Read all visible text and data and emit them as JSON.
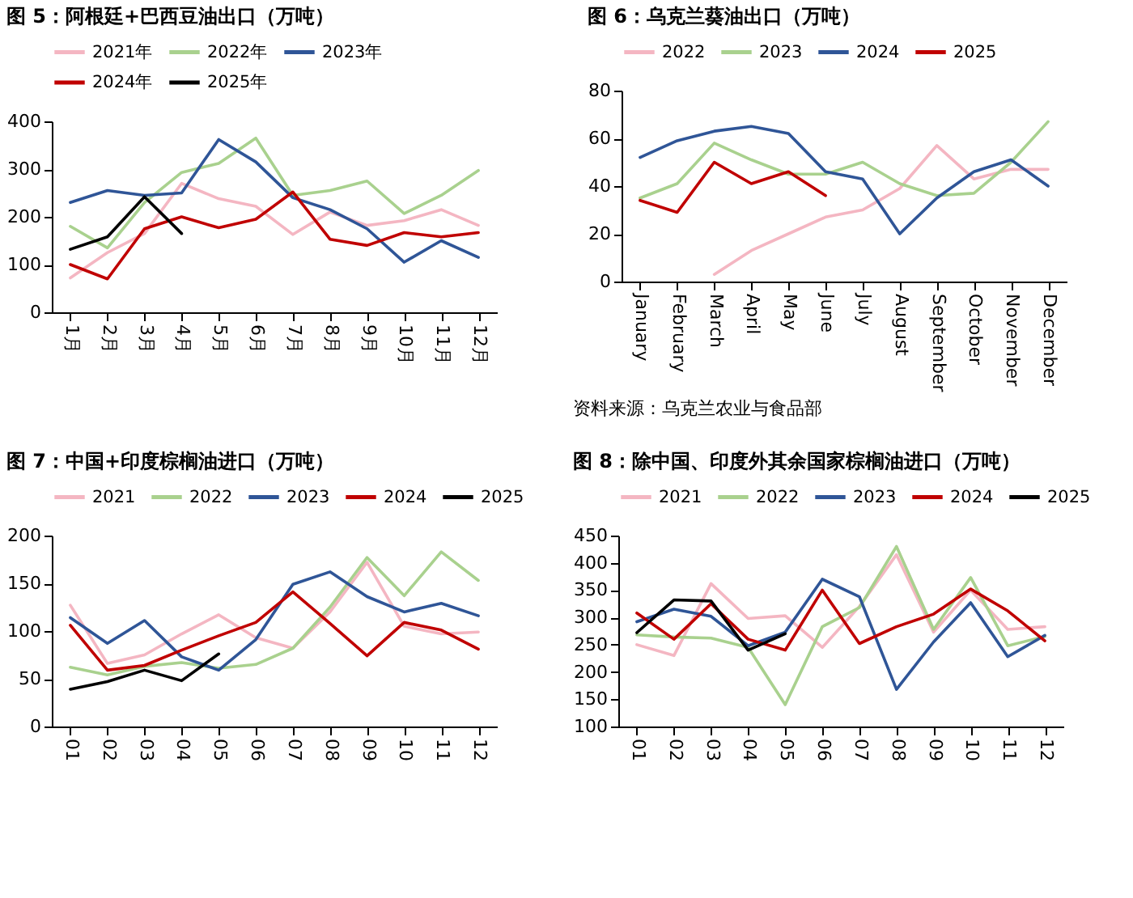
{
  "chart_data": [
    {
      "type": "line",
      "title": "图 5：阿根廷+巴西豆油出口（万吨）",
      "categories": [
        "1月",
        "2月",
        "3月",
        "4月",
        "5月",
        "6月",
        "7月",
        "8月",
        "9月",
        "10月",
        "11月",
        "12月"
      ],
      "ylim": [
        0,
        400
      ],
      "yticks": [
        0,
        100,
        200,
        300,
        400
      ],
      "grid": false,
      "legend": "top",
      "series": [
        {
          "name": "2021年",
          "color": "#f4b6c2",
          "values": [
            72,
            125,
            165,
            270,
            238,
            222,
            163,
            210,
            182,
            192,
            215,
            182
          ]
        },
        {
          "name": "2022年",
          "color": "#a9d18e",
          "values": [
            180,
            135,
            230,
            293,
            312,
            365,
            245,
            255,
            275,
            207,
            245,
            297
          ]
        },
        {
          "name": "2023年",
          "color": "#2f5597",
          "values": [
            230,
            255,
            245,
            250,
            362,
            315,
            240,
            215,
            175,
            105,
            150,
            115
          ]
        },
        {
          "name": "2024年",
          "color": "#c00000",
          "values": [
            100,
            70,
            175,
            200,
            177,
            195,
            252,
            153,
            140,
            167,
            158,
            167
          ]
        },
        {
          "name": "2025年",
          "color": "#000000",
          "values": [
            132,
            158,
            242,
            165,
            null,
            null,
            null,
            null,
            null,
            null,
            null,
            null
          ]
        }
      ]
    },
    {
      "type": "line",
      "title": "图 6：乌克兰葵油出口（万吨）",
      "categories": [
        "January",
        "February",
        "March",
        "April",
        "May",
        "June",
        "July",
        "August",
        "September",
        "October",
        "November",
        "December"
      ],
      "ylim": [
        0,
        80
      ],
      "yticks": [
        0,
        20,
        40,
        60,
        80
      ],
      "grid": false,
      "legend": "top",
      "annotations": [
        "资料来源：乌克兰农业与食品部"
      ],
      "series": [
        {
          "name": "2022",
          "color": "#f4b6c2",
          "values": [
            null,
            null,
            3,
            13,
            20,
            27,
            30,
            39,
            57,
            43,
            47,
            47
          ]
        },
        {
          "name": "2023",
          "color": "#a9d18e",
          "values": [
            35,
            41,
            58,
            51,
            45,
            45,
            50,
            41,
            36,
            37,
            50,
            67
          ]
        },
        {
          "name": "2024",
          "color": "#2f5597",
          "values": [
            52,
            59,
            63,
            65,
            62,
            46,
            43,
            20,
            35,
            46,
            51,
            40
          ]
        },
        {
          "name": "2025",
          "color": "#c00000",
          "values": [
            34,
            29,
            50,
            41,
            46,
            36,
            null,
            null,
            null,
            null,
            null,
            null
          ]
        }
      ]
    },
    {
      "type": "line",
      "title": "图 7：中国+印度棕榈油进口（万吨）",
      "categories": [
        "01",
        "02",
        "03",
        "04",
        "05",
        "06",
        "07",
        "08",
        "09",
        "10",
        "11",
        "12"
      ],
      "ylim": [
        0,
        200
      ],
      "yticks": [
        0,
        50,
        100,
        150,
        200
      ],
      "grid": false,
      "legend": "top",
      "series": [
        {
          "name": "2021",
          "color": "#f4b6c2",
          "values": [
            127,
            66,
            75,
            97,
            117,
            93,
            82,
            120,
            172,
            105,
            97,
            99
          ]
        },
        {
          "name": "2022",
          "color": "#a9d18e",
          "values": [
            62,
            54,
            63,
            67,
            61,
            65,
            82,
            125,
            177,
            137,
            183,
            153
          ]
        },
        {
          "name": "2023",
          "color": "#2f5597",
          "values": [
            114,
            87,
            111,
            73,
            59,
            91,
            149,
            162,
            136,
            120,
            129,
            116
          ]
        },
        {
          "name": "2024",
          "color": "#c00000",
          "values": [
            106,
            59,
            64,
            80,
            95,
            109,
            141,
            108,
            74,
            109,
            101,
            81
          ]
        },
        {
          "name": "2025",
          "color": "#000000",
          "values": [
            39,
            47,
            59,
            48,
            76,
            null,
            null,
            null,
            null,
            null,
            null,
            null
          ]
        }
      ]
    },
    {
      "type": "line",
      "title": "图 8：除中国、印度外其余国家棕榈油进口（万吨）",
      "categories": [
        "01",
        "02",
        "03",
        "04",
        "05",
        "06",
        "07",
        "08",
        "09",
        "10",
        "11",
        "12"
      ],
      "ylim": [
        100,
        450
      ],
      "yticks": [
        100,
        150,
        200,
        250,
        300,
        350,
        400,
        450
      ],
      "grid": false,
      "legend": "top",
      "series": [
        {
          "name": "2021",
          "color": "#f4b6c2",
          "values": [
            250,
            230,
            362,
            298,
            303,
            245,
            320,
            415,
            273,
            350,
            278,
            283
          ]
        },
        {
          "name": "2022",
          "color": "#a9d18e",
          "values": [
            268,
            264,
            262,
            245,
            140,
            283,
            318,
            430,
            278,
            373,
            248,
            265
          ]
        },
        {
          "name": "2023",
          "color": "#2f5597",
          "values": [
            292,
            315,
            302,
            248,
            273,
            370,
            338,
            168,
            255,
            327,
            228,
            267
          ]
        },
        {
          "name": "2024",
          "color": "#c00000",
          "values": [
            308,
            260,
            325,
            260,
            240,
            350,
            252,
            283,
            306,
            352,
            312,
            257
          ]
        },
        {
          "name": "2025",
          "color": "#000000",
          "values": [
            272,
            332,
            330,
            240,
            270,
            null,
            null,
            null,
            null,
            null,
            null,
            null
          ]
        }
      ]
    }
  ]
}
